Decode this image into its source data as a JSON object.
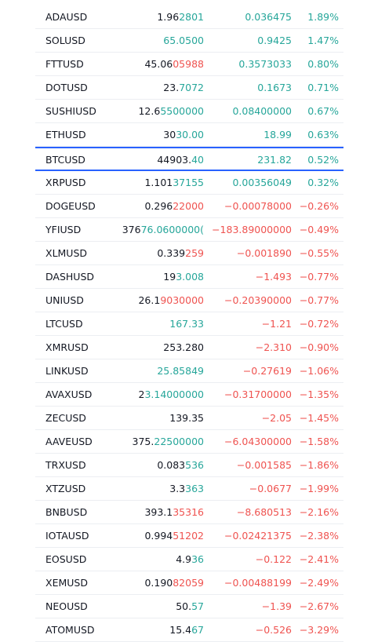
{
  "watchlist": {
    "colors": {
      "up": "#26a69a",
      "down": "#ef5350",
      "highlight": "#2962ff"
    },
    "rows": [
      {
        "symbol": "ADAUSD",
        "last_base": "1.96",
        "last_hl": "2801",
        "last_dir": "up",
        "change": "0.036475",
        "change_pct": "1.89%",
        "dir": "up"
      },
      {
        "symbol": "SOLUSD",
        "last_base": "",
        "last_hl": "65.0500",
        "last_dir": "up",
        "change": "0.9425",
        "change_pct": "1.47%",
        "dir": "up"
      },
      {
        "symbol": "FTTUSD",
        "last_base": "45.06",
        "last_hl": "05988",
        "last_dir": "down",
        "change": "0.3573033",
        "change_pct": "0.80%",
        "dir": "up"
      },
      {
        "symbol": "DOTUSD",
        "last_base": "23.",
        "last_hl": "7072",
        "last_dir": "up",
        "change": "0.1673",
        "change_pct": "0.71%",
        "dir": "up"
      },
      {
        "symbol": "SUSHIUSD",
        "last_base": "12.6",
        "last_hl": "5500000",
        "last_dir": "up",
        "change": "0.08400000",
        "change_pct": "0.67%",
        "dir": "up"
      },
      {
        "symbol": "ETHUSD",
        "last_base": "30",
        "last_hl": "30.00",
        "last_dir": "up",
        "change": "18.99",
        "change_pct": "0.63%",
        "dir": "up"
      },
      {
        "symbol": "BTCUSD",
        "last_base": "44903.",
        "last_hl": "40",
        "last_dir": "up",
        "change": "231.82",
        "change_pct": "0.52%",
        "dir": "up",
        "active": true
      },
      {
        "symbol": "XRPUSD",
        "last_base": "1.101",
        "last_hl": "37155",
        "last_dir": "up",
        "change": "0.00356049",
        "change_pct": "0.32%",
        "dir": "up"
      },
      {
        "symbol": "DOGEUSD",
        "last_base": "0.296",
        "last_hl": "22000",
        "last_dir": "down",
        "change": "−0.00078000",
        "change_pct": "−0.26%",
        "dir": "down"
      },
      {
        "symbol": "YFIUSD",
        "last_base": "376",
        "last_hl": "76.0600000(",
        "last_dir": "up",
        "change": "−183.89000000",
        "change_pct": "−0.49%",
        "dir": "down"
      },
      {
        "symbol": "XLMUSD",
        "last_base": "0.339",
        "last_hl": "259",
        "last_dir": "down",
        "change": "−0.001890",
        "change_pct": "−0.55%",
        "dir": "down"
      },
      {
        "symbol": "DASHUSD",
        "last_base": "19",
        "last_hl": "3.008",
        "last_dir": "up",
        "change": "−1.493",
        "change_pct": "−0.77%",
        "dir": "down"
      },
      {
        "symbol": "UNIUSD",
        "last_base": "26.1",
        "last_hl": "9030000",
        "last_dir": "down",
        "change": "−0.20390000",
        "change_pct": "−0.77%",
        "dir": "down"
      },
      {
        "symbol": "LTCUSD",
        "last_base": "",
        "last_hl": "167.33",
        "last_dir": "up",
        "change": "−1.21",
        "change_pct": "−0.72%",
        "dir": "down"
      },
      {
        "symbol": "XMRUSD",
        "last_base": "253.280",
        "last_hl": "",
        "last_dir": "up",
        "change": "−2.310",
        "change_pct": "−0.90%",
        "dir": "down"
      },
      {
        "symbol": "LINKUSD",
        "last_base": "",
        "last_hl": "25.85849",
        "last_dir": "up",
        "change": "−0.27619",
        "change_pct": "−1.06%",
        "dir": "down"
      },
      {
        "symbol": "AVAXUSD",
        "last_base": "2",
        "last_hl": "3.14000000",
        "last_dir": "up",
        "change": "−0.31700000",
        "change_pct": "−1.35%",
        "dir": "down"
      },
      {
        "symbol": "ZECUSD",
        "last_base": "139.35",
        "last_hl": "",
        "last_dir": "up",
        "change": "−2.05",
        "change_pct": "−1.45%",
        "dir": "down"
      },
      {
        "symbol": "AAVEUSD",
        "last_base": "375.",
        "last_hl": "22500000",
        "last_dir": "up",
        "change": "−6.04300000",
        "change_pct": "−1.58%",
        "dir": "down"
      },
      {
        "symbol": "TRXUSD",
        "last_base": "0.083",
        "last_hl": "536",
        "last_dir": "up",
        "change": "−0.001585",
        "change_pct": "−1.86%",
        "dir": "down"
      },
      {
        "symbol": "XTZUSD",
        "last_base": "3.3",
        "last_hl": "363",
        "last_dir": "up",
        "change": "−0.0677",
        "change_pct": "−1.99%",
        "dir": "down"
      },
      {
        "symbol": "BNBUSD",
        "last_base": "393.1",
        "last_hl": "35316",
        "last_dir": "down",
        "change": "−8.680513",
        "change_pct": "−2.16%",
        "dir": "down"
      },
      {
        "symbol": "IOTAUSD",
        "last_base": "0.994",
        "last_hl": "51202",
        "last_dir": "down",
        "change": "−0.02421375",
        "change_pct": "−2.38%",
        "dir": "down"
      },
      {
        "symbol": "EOSUSD",
        "last_base": "4.9",
        "last_hl": "36",
        "last_dir": "up",
        "change": "−0.122",
        "change_pct": "−2.41%",
        "dir": "down"
      },
      {
        "symbol": "XEMUSD",
        "last_base": "0.190",
        "last_hl": "82059",
        "last_dir": "down",
        "change": "−0.00488199",
        "change_pct": "−2.49%",
        "dir": "down"
      },
      {
        "symbol": "NEOUSD",
        "last_base": "50.",
        "last_hl": "57",
        "last_dir": "up",
        "change": "−1.39",
        "change_pct": "−2.67%",
        "dir": "down"
      },
      {
        "symbol": "ATOMUSD",
        "last_base": "15.4",
        "last_hl": "67",
        "last_dir": "up",
        "change": "−0.526",
        "change_pct": "−3.29%",
        "dir": "down"
      }
    ]
  }
}
